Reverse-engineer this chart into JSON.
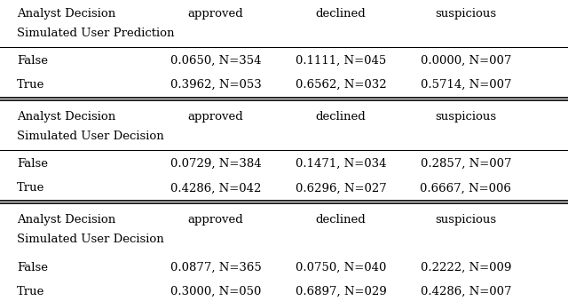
{
  "sections": [
    {
      "header_row1": "Analyst Decision",
      "header_row2": "Simulated User Prediction",
      "col_headers": [
        "approved",
        "declined",
        "suspicious"
      ],
      "rows": [
        {
          "label": "False",
          "values": [
            "0.0650, N=354",
            "0.1111, N=045",
            "0.0000, N=007"
          ]
        },
        {
          "label": "True",
          "values": [
            "0.3962, N=053",
            "0.6562, N=032",
            "0.5714, N=007"
          ]
        }
      ]
    },
    {
      "header_row1": "Analyst Decision",
      "header_row2": "Simulated User Decision",
      "col_headers": [
        "approved",
        "declined",
        "suspicious"
      ],
      "rows": [
        {
          "label": "False",
          "values": [
            "0.0729, N=384",
            "0.1471, N=034",
            "0.2857, N=007"
          ]
        },
        {
          "label": "True",
          "values": [
            "0.4286, N=042",
            "0.6296, N=027",
            "0.6667, N=006"
          ]
        }
      ]
    },
    {
      "header_row1": "Analyst Decision",
      "header_row2": "Simulated User Decision",
      "col_headers": [
        "approved",
        "declined",
        "suspicious"
      ],
      "rows": [
        {
          "label": "False",
          "values": [
            "0.0877, N=365",
            "0.0750, N=040",
            "0.2222, N=009"
          ]
        },
        {
          "label": "True",
          "values": [
            "0.3000, N=050",
            "0.6897, N=029",
            "0.4286, N=007"
          ]
        }
      ]
    }
  ],
  "font_size": 9.5,
  "background_color": "#ffffff",
  "text_color": "#000000"
}
